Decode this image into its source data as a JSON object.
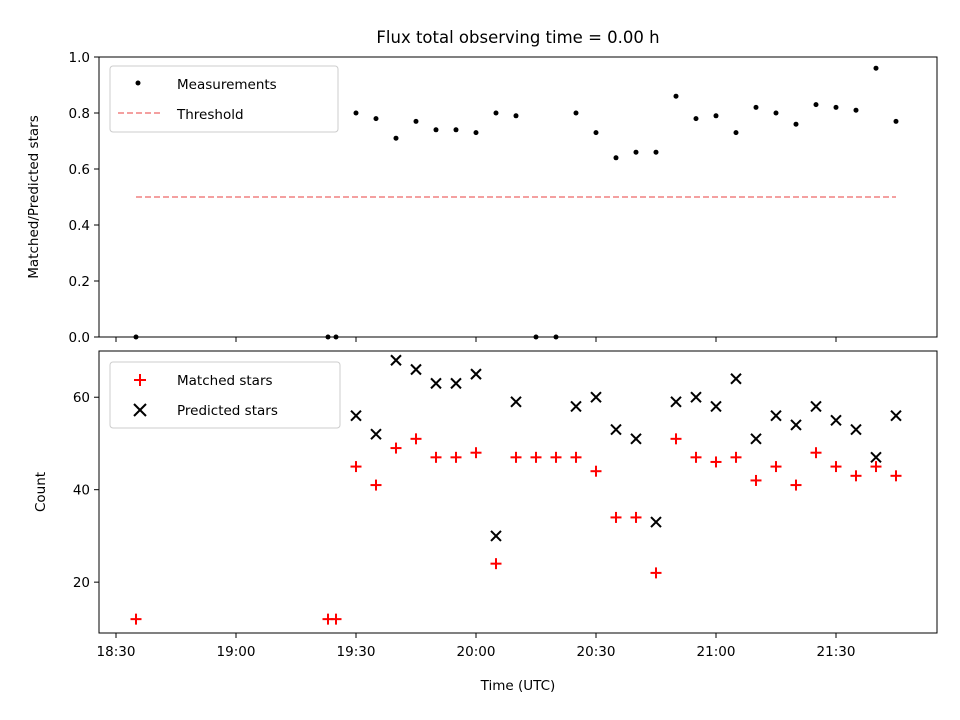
{
  "chart_data": [
    {
      "type": "scatter",
      "title": "Flux total observing time = 0.00 h",
      "ylabel": "Matched/Predicted stars",
      "xlabel": "",
      "ylim": [
        0.0,
        1.0
      ],
      "yticks": [
        "0.0",
        "0.2",
        "0.4",
        "0.6",
        "0.8",
        "1.0"
      ],
      "legend": {
        "placement": "top-left",
        "entries": [
          "Measurements",
          "Threshold"
        ]
      },
      "threshold": {
        "name": "Threshold",
        "value": 0.5,
        "x_start": "18:35",
        "x_end": "21:45",
        "color": "#f08080"
      },
      "series": [
        {
          "name": "Measurements",
          "color": "#000000",
          "x": [
            "18:35",
            "19:23",
            "19:25",
            "19:30",
            "19:35",
            "19:40",
            "19:45",
            "19:50",
            "19:55",
            "20:00",
            "20:05",
            "20:10",
            "20:15",
            "20:20",
            "20:25",
            "20:30",
            "20:35",
            "20:40",
            "20:45",
            "20:50",
            "20:55",
            "21:00",
            "21:05",
            "21:10",
            "21:15",
            "21:20",
            "21:25",
            "21:30",
            "21:35",
            "21:40",
            "21:45"
          ],
          "y": [
            0.0,
            0.0,
            0.0,
            0.8,
            0.78,
            0.71,
            0.77,
            0.74,
            0.74,
            0.73,
            0.8,
            0.79,
            0.0,
            0.0,
            0.8,
            0.73,
            0.64,
            0.66,
            0.66,
            0.86,
            0.78,
            0.79,
            0.73,
            0.82,
            0.8,
            0.76,
            0.83,
            0.82,
            0.81,
            0.96,
            0.77
          ]
        }
      ]
    },
    {
      "type": "scatter",
      "title": "",
      "ylabel": "Count",
      "xlabel": "Time (UTC)",
      "ylim": [
        9,
        70
      ],
      "yticks": [
        "20",
        "40",
        "60"
      ],
      "xticks": [
        "18:30",
        "19:00",
        "19:30",
        "20:00",
        "20:30",
        "21:00",
        "21:30"
      ],
      "legend": {
        "placement": "top-left",
        "entries": [
          "Matched stars",
          "Predicted stars"
        ]
      },
      "series": [
        {
          "name": "Matched stars",
          "marker": "plus",
          "color": "#ff0000",
          "x": [
            "18:35",
            "19:23",
            "19:25",
            "19:30",
            "19:35",
            "19:40",
            "19:45",
            "19:50",
            "19:55",
            "20:00",
            "20:05",
            "20:10",
            "20:15",
            "20:20",
            "20:25",
            "20:30",
            "20:35",
            "20:40",
            "20:45",
            "20:50",
            "20:55",
            "21:00",
            "21:05",
            "21:10",
            "21:15",
            "21:20",
            "21:25",
            "21:30",
            "21:35",
            "21:40",
            "21:45"
          ],
          "y": [
            12,
            12,
            12,
            45,
            41,
            49,
            51,
            47,
            47,
            48,
            24,
            47,
            47,
            47,
            47,
            44,
            34,
            34,
            22,
            51,
            47,
            46,
            47,
            42,
            45,
            41,
            48,
            45,
            43,
            45,
            43
          ]
        },
        {
          "name": "Predicted stars",
          "marker": "x",
          "color": "#000000",
          "x": [
            "19:30",
            "19:35",
            "19:40",
            "19:45",
            "19:50",
            "19:55",
            "20:00",
            "20:05",
            "20:10",
            "20:25",
            "20:30",
            "20:35",
            "20:40",
            "20:45",
            "20:50",
            "20:55",
            "21:00",
            "21:05",
            "21:10",
            "21:15",
            "21:20",
            "21:25",
            "21:30",
            "21:35",
            "21:40",
            "21:45"
          ],
          "y": [
            56,
            52,
            68,
            66,
            63,
            63,
            65,
            30,
            59,
            58,
            60,
            53,
            51,
            33,
            59,
            60,
            58,
            64,
            51,
            56,
            54,
            58,
            55,
            53,
            47,
            56
          ]
        }
      ]
    }
  ]
}
